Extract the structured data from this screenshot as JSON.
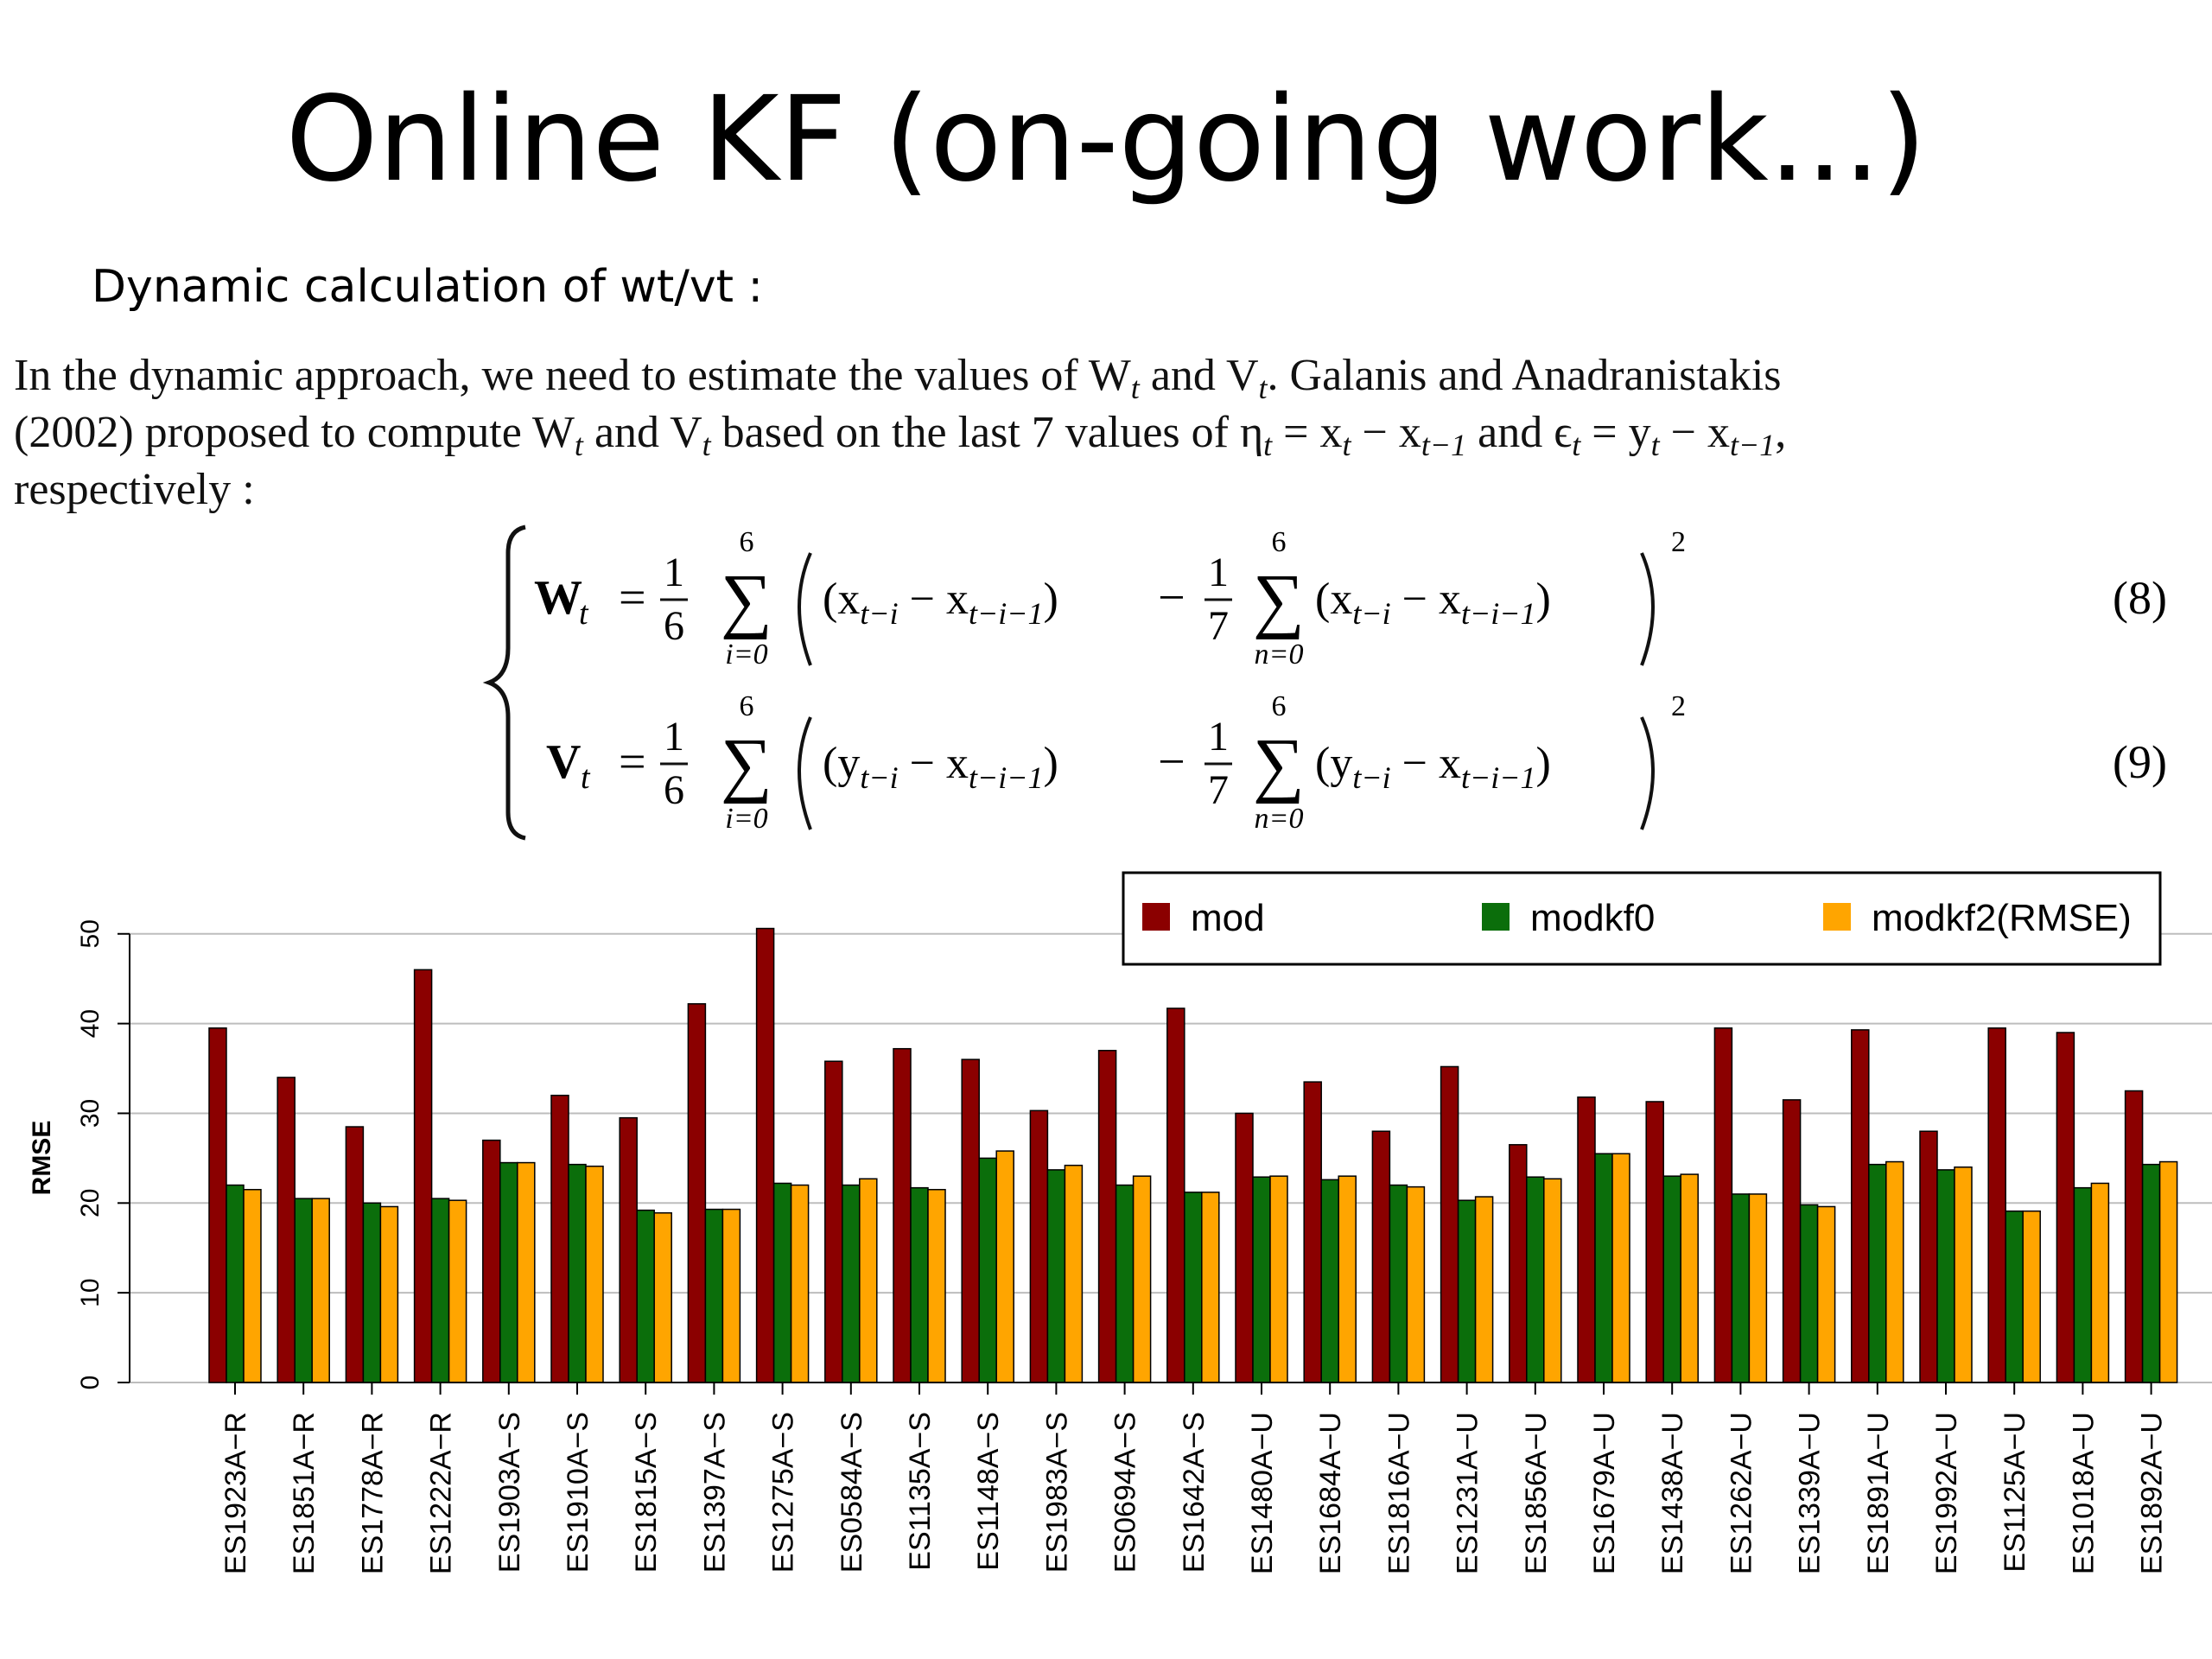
{
  "slide": {
    "title": "Online KF (on-going work...)",
    "subtitle": "Dynamic calculation of wt/vt :"
  },
  "paper": {
    "line1": "In the dynamic approach, we need to estimate the values of W",
    "line1_sub1": "t",
    "line1_and": " and V",
    "line1_sub2": "t",
    "line1_rest": ". Galanis and Anadranistakis",
    "line2": "(2002) proposed to compute W",
    "line2_sub1": "t",
    "line2_b": " and V",
    "line2_sub2": "t",
    "line2_c": " based on the last 7 values of η",
    "line2_sub3": "t",
    "line2_d": " = x",
    "line2_sub4": "t",
    "line2_e": " − x",
    "line2_sub5": "t−1",
    "line2_f": " and ϵ",
    "line2_sub6": "t",
    "line2_g": " = y",
    "line2_sub7": "t",
    "line2_h": " − x",
    "line2_sub8": "t−1",
    "line2_i": ",",
    "line3": "respectively :",
    "eq8": {
      "lhs": "W",
      "lhs_sub": "t",
      "frac_num": "1",
      "frac_den": "6",
      "sum_top": "6",
      "sum_bottom": "i=0",
      "term1": "(x",
      "term1_sub_a": "t−i",
      "term1_mid": " − x",
      "term1_sub_b": "t−i−1",
      "term1_end": ")",
      "frac2_num": "1",
      "frac2_den": "7",
      "sum2_top": "6",
      "sum2_bottom": "n=0",
      "term2": "(x",
      "term2_sub_a": "t−i",
      "term2_mid": " − x",
      "term2_sub_b": "t−i−1",
      "term2_end": ")",
      "power": "2",
      "number": "(8)"
    },
    "eq9": {
      "lhs": "V",
      "lhs_sub": "t",
      "frac_num": "1",
      "frac_den": "6",
      "sum_top": "6",
      "sum_bottom": "i=0",
      "term1": "(y",
      "term1_sub_a": "t−i",
      "term1_mid": " − x",
      "term1_sub_b": "t−i−1",
      "term1_end": ")",
      "frac2_num": "1",
      "frac2_den": "7",
      "sum2_top": "6",
      "sum2_bottom": "n=0",
      "term2": "(y",
      "term2_sub_a": "t−i",
      "term2_mid": " − x",
      "term2_sub_b": "t−i−1",
      "term2_end": ")",
      "power": "2",
      "number": "(9)"
    }
  },
  "chart_data": {
    "type": "bar",
    "ylabel": "RMSE",
    "ylim": [
      0,
      52
    ],
    "yticks": [
      0,
      10,
      20,
      30,
      40,
      50
    ],
    "grid": true,
    "legend_position": "top-right",
    "categories": [
      "ES1923A−R",
      "ES1851A−R",
      "ES1778A−R",
      "ES1222A−R",
      "ES1903A−S",
      "ES1910A−S",
      "ES1815A−S",
      "ES1397A−S",
      "ES1275A−S",
      "ES0584A−S",
      "ES1135A−S",
      "ES1148A−S",
      "ES1983A−S",
      "ES0694A−S",
      "ES1642A−S",
      "ES1480A−U",
      "ES1684A−U",
      "ES1816A−U",
      "ES1231A−U",
      "ES1856A−U",
      "ES1679A−U",
      "ES1438A−U",
      "ES1262A−U",
      "ES1339A−U",
      "ES1891A−U",
      "ES1992A−U",
      "ES1125A−U",
      "ES1018A−U",
      "ES1892A−U"
    ],
    "series": [
      {
        "name": "mod",
        "color": "#8b0000",
        "values": [
          39.5,
          34,
          28.5,
          46,
          27,
          32,
          29.5,
          42.2,
          50.6,
          35.8,
          37.2,
          36,
          30.3,
          37,
          41.7,
          30,
          33.5,
          28,
          35.2,
          26.5,
          31.8,
          31.3,
          39.5,
          31.5,
          39.3,
          28,
          39.5,
          39,
          32.5
        ]
      },
      {
        "name": "modkf0",
        "color": "#0b6e0b",
        "values": [
          22,
          20.5,
          20,
          20.5,
          24.5,
          24.3,
          19.2,
          19.3,
          22.2,
          22,
          21.7,
          25,
          23.7,
          22,
          21.2,
          22.9,
          22.6,
          22,
          20.3,
          22.9,
          25.5,
          23,
          21,
          19.8,
          24.3,
          23.7,
          19.1,
          21.7,
          24.3
        ]
      },
      {
        "name": "modkf2(RMSE)",
        "color": "#ffa500",
        "values": [
          21.5,
          20.5,
          19.6,
          20.3,
          24.5,
          24.1,
          18.9,
          19.3,
          22,
          22.7,
          21.5,
          25.8,
          24.2,
          23,
          21.2,
          23,
          23,
          21.8,
          20.7,
          22.7,
          25.5,
          23.2,
          21,
          19.6,
          24.6,
          24,
          19.1,
          22.2,
          24.6
        ]
      }
    ]
  }
}
